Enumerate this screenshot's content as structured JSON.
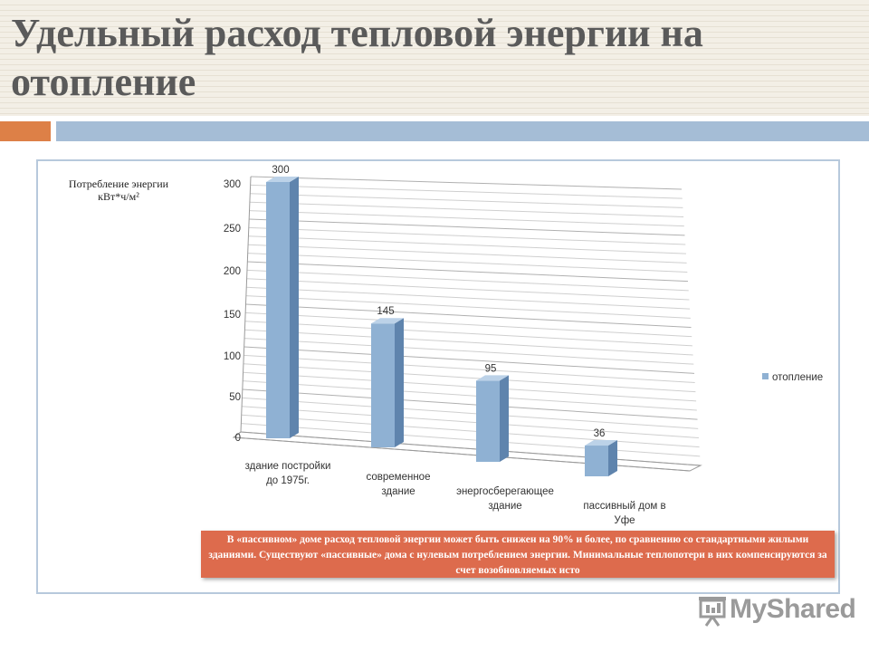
{
  "slide": {
    "title": "Удельный расход тепловой энергии на отопление"
  },
  "note": "В «пассивном» доме расход тепловой энергии может быть снижен на 90% и более, по сравнению со стандартными жилыми зданиями. Существуют «пассивные» дома с нулевым потреблением энергии. Минимальные теплопотери в них компенсируются за счет возобновляемых исто",
  "logo": {
    "text": "MyShared",
    "icon": "presentation-board-icon"
  },
  "colors": {
    "bar": "#8fb1d3",
    "bar_side": "#5f84ad",
    "bar_top": "#bcd2e8",
    "accent": "#dd8047",
    "note_bg": "#dd6b4d"
  },
  "chart_data": {
    "type": "bar",
    "title": "",
    "ylabel": "Потребление энергии кВт*ч/м²",
    "xlabel": "",
    "categories": [
      [
        "здание постройки",
        "до 1975г."
      ],
      [
        "современное",
        "здание"
      ],
      [
        "энергосберегающее",
        "здание"
      ],
      [
        "пассивный дом в",
        "Уфе"
      ]
    ],
    "series": [
      {
        "name": "отопление",
        "values": [
          300,
          145,
          95,
          36
        ]
      }
    ],
    "yticks": [
      0,
      50,
      100,
      150,
      200,
      250,
      300
    ],
    "ylim": [
      0,
      300
    ],
    "grid": true,
    "legend": "right",
    "style": "3d-perspective"
  }
}
